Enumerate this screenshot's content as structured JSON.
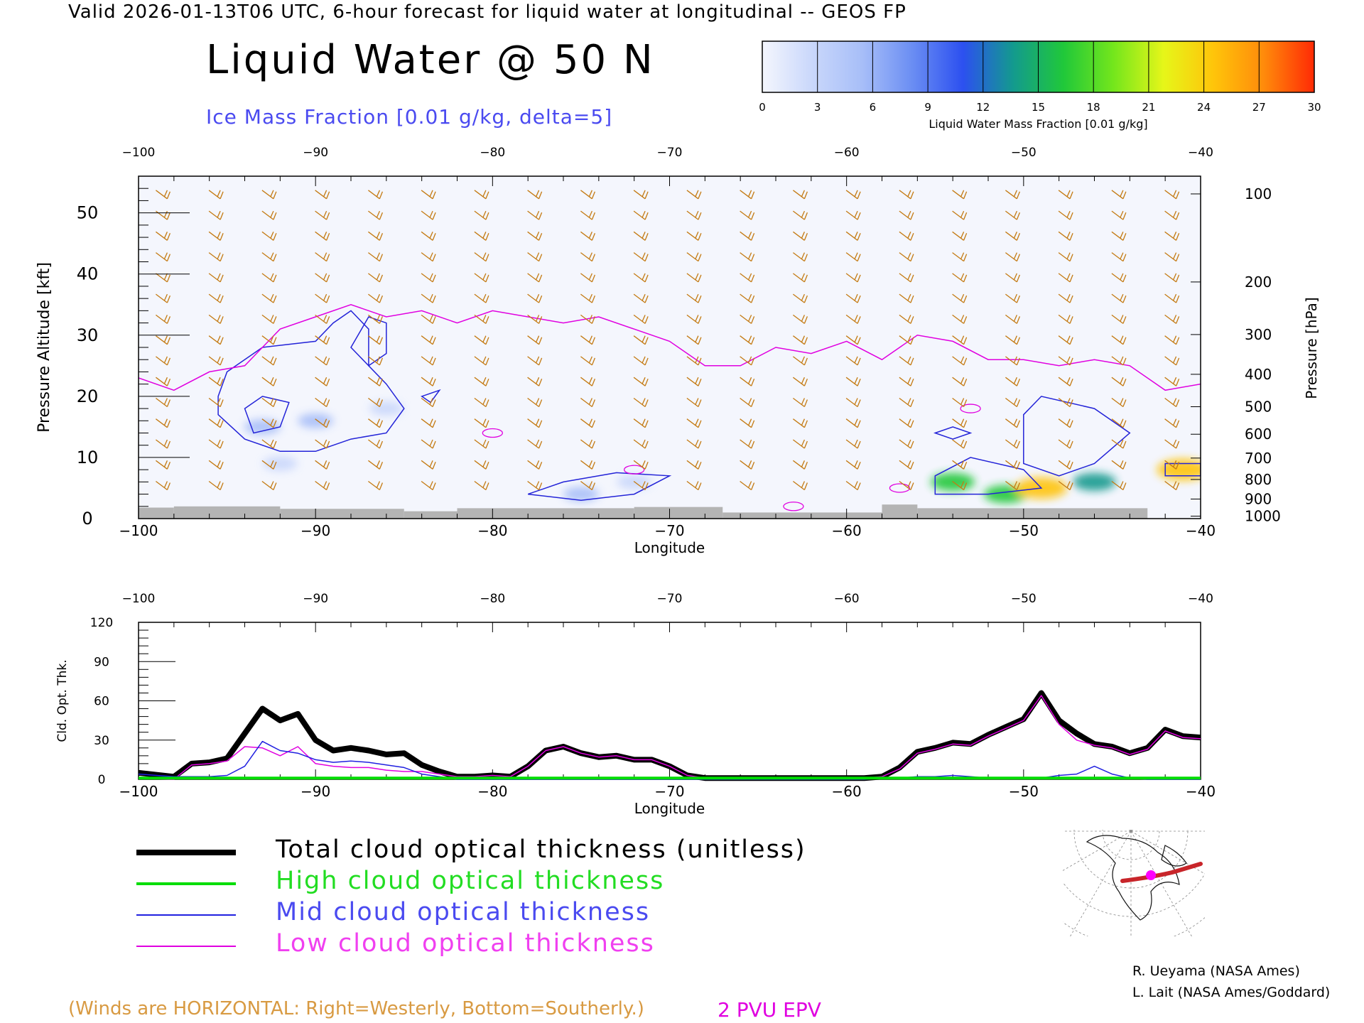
{
  "header": "Valid 2026-01-13T06 UTC, 6-hour forecast for liquid water at longitudinal -- GEOS FP",
  "title": "Liquid Water @ 50 N",
  "subtitle": "Ice Mass Fraction [0.01 g/kg, delta=5]",
  "colorbar": {
    "label": "Liquid Water Mass Fraction [0.01 g/kg]",
    "ticks": [
      "0",
      "3",
      "6",
      "9",
      "12",
      "15",
      "18",
      "21",
      "24",
      "27",
      "30"
    ],
    "colors": [
      "#f4f6fd",
      "#c9d7fb",
      "#a7bef8",
      "#6a8df3",
      "#2c50f0",
      "#139a8e",
      "#20c83a",
      "#74e61c",
      "#e6f619",
      "#ffc40a",
      "#ff8a0b",
      "#ff2a05"
    ]
  },
  "colors": {
    "wind_barb": "#c47a12",
    "ice_contour": "#2323d8",
    "epv_2pvu": "#e000e0",
    "terrain": "#b4b4b4",
    "total": "#000000",
    "high": "#00dd00",
    "mid": "#2020e0",
    "low": "#e000e0"
  },
  "chart_data": [
    {
      "type": "heatmap",
      "name": "liquid-water-cross-section",
      "xlabel": "Longitude",
      "ylabel": "Pressure Altitude [kft]",
      "y2label": "Pressure [hPa]",
      "xlim": [
        -100,
        -40
      ],
      "ylim": [
        0,
        56
      ],
      "x_ticks": [
        "-100",
        "-90",
        "-80",
        "-70",
        "-60",
        "-50",
        "-40"
      ],
      "y_ticks": [
        "0",
        "10",
        "20",
        "30",
        "40",
        "50"
      ],
      "pressure_ticks": [
        "100",
        "200",
        "300",
        "400",
        "500",
        "600",
        "700",
        "800",
        "900",
        "1000"
      ],
      "pressure_tick_kft": [
        53.1,
        38.7,
        30.1,
        23.6,
        18.3,
        13.8,
        9.9,
        6.4,
        3.2,
        0.4
      ],
      "liquid_water_patches": [
        {
          "lon": -93,
          "kft": 15,
          "value": 6
        },
        {
          "lon": -90,
          "kft": 16,
          "value": 5
        },
        {
          "lon": -92,
          "kft": 9,
          "value": 4
        },
        {
          "lon": -86,
          "kft": 18,
          "value": 3
        },
        {
          "lon": -75,
          "kft": 4,
          "value": 5
        },
        {
          "lon": -72,
          "kft": 6,
          "value": 4
        },
        {
          "lon": -54,
          "kft": 6,
          "value": 15
        },
        {
          "lon": -51,
          "kft": 4,
          "value": 15
        },
        {
          "lon": -49,
          "kft": 5,
          "value": 24
        },
        {
          "lon": -46,
          "kft": 6,
          "value": 14
        },
        {
          "lon": -41,
          "kft": 8,
          "value": 24
        }
      ],
      "epv_2pvu_kft": {
        "lon": [
          -100,
          -98,
          -96,
          -94,
          -92,
          -90,
          -88,
          -86,
          -84,
          -82,
          -80,
          -78,
          -76,
          -74,
          -72,
          -70,
          -68,
          -66,
          -64,
          -62,
          -60,
          -58,
          -56,
          -54,
          -52,
          -50,
          -48,
          -46,
          -44,
          -42,
          -40
        ],
        "kft": [
          23,
          21,
          24,
          25,
          31,
          33,
          35,
          33,
          34,
          32,
          34,
          33,
          32,
          33,
          31,
          29,
          25,
          25,
          28,
          27,
          29,
          26,
          30,
          29,
          26,
          26,
          25,
          26,
          25,
          21,
          22
        ]
      }
    },
    {
      "type": "line",
      "name": "cloud-optical-thickness",
      "xlabel": "Longitude",
      "ylabel": "Cld. Opt. Thk.",
      "xlim": [
        -100,
        -40
      ],
      "ylim": [
        0,
        120
      ],
      "x_ticks": [
        "-100",
        "-90",
        "-80",
        "-70",
        "-60",
        "-50",
        "-40"
      ],
      "y_ticks": [
        "0",
        "30",
        "60",
        "90",
        "120"
      ],
      "x": [
        -100,
        -98,
        -97,
        -96,
        -95,
        -94,
        -93,
        -92,
        -91,
        -90,
        -89,
        -88,
        -87,
        -86,
        -85,
        -84,
        -83,
        -82,
        -81,
        -80,
        -79,
        -78,
        -77,
        -76,
        -75,
        -74,
        -73,
        -72,
        -71,
        -70,
        -69,
        -68,
        -67,
        -66,
        -65,
        -64,
        -63,
        -62,
        -61,
        -60,
        -59,
        -58,
        -57,
        -56,
        -55,
        -54,
        -53,
        -52,
        -51,
        -50,
        -49,
        -48,
        -47,
        -46,
        -45,
        -44,
        -43,
        -42,
        -41,
        -40
      ],
      "series": [
        {
          "name": "Total cloud optical thickness (unitless)",
          "key": "total",
          "values": [
            5,
            2,
            12,
            13,
            16,
            35,
            54,
            45,
            50,
            30,
            22,
            24,
            22,
            19,
            20,
            11,
            6,
            2,
            2,
            3,
            2,
            10,
            22,
            25,
            20,
            17,
            18,
            15,
            15,
            10,
            3,
            1,
            1,
            1,
            1,
            1,
            1,
            1,
            1,
            1,
            1,
            2,
            9,
            21,
            24,
            28,
            27,
            34,
            40,
            46,
            66,
            45,
            35,
            27,
            25,
            20,
            24,
            38,
            33,
            32
          ]
        },
        {
          "name": "High cloud optical thickness",
          "key": "high",
          "values": [
            1,
            1,
            1,
            1,
            1,
            1,
            1,
            1,
            1,
            1,
            1,
            1,
            1,
            1,
            1,
            1,
            1,
            1,
            1,
            1,
            1,
            1,
            1,
            1,
            1,
            1,
            1,
            1,
            1,
            1,
            1,
            1,
            1,
            1,
            1,
            1,
            1,
            1,
            1,
            1,
            1,
            1,
            1,
            1,
            1,
            1,
            1,
            1,
            1,
            1,
            1,
            1,
            1,
            1,
            1,
            1,
            1,
            1,
            1,
            1
          ]
        },
        {
          "name": "Mid cloud optical thickness",
          "key": "mid",
          "values": [
            4,
            2,
            2,
            2,
            3,
            10,
            29,
            22,
            20,
            15,
            13,
            14,
            13,
            11,
            9,
            4,
            2,
            0,
            0,
            0,
            0,
            0,
            0,
            0,
            0,
            0,
            0,
            0,
            0,
            0,
            0,
            0,
            0,
            0,
            0,
            0,
            0,
            0,
            0,
            0,
            0,
            1,
            1,
            2,
            2,
            3,
            2,
            1,
            1,
            1,
            1,
            3,
            4,
            10,
            4,
            1,
            0,
            0,
            0,
            0
          ]
        },
        {
          "name": "Low cloud optical thickness",
          "key": "low",
          "values": [
            1,
            0,
            11,
            12,
            14,
            25,
            24,
            18,
            25,
            12,
            10,
            9,
            9,
            7,
            6,
            6,
            4,
            2,
            2,
            3,
            2,
            10,
            22,
            25,
            20,
            17,
            18,
            15,
            15,
            10,
            3,
            1,
            1,
            1,
            1,
            1,
            1,
            1,
            1,
            1,
            1,
            2,
            8,
            20,
            23,
            27,
            26,
            33,
            39,
            45,
            64,
            42,
            30,
            26,
            24,
            19,
            23,
            37,
            32,
            31
          ]
        }
      ]
    }
  ],
  "legend": [
    {
      "key": "total",
      "label": "Total cloud optical thickness (unitless)",
      "color": "#000000",
      "color_text": "#000000"
    },
    {
      "key": "high",
      "label": "High cloud optical thickness",
      "color": "#00dd00",
      "color_text": "#22dd22"
    },
    {
      "key": "mid",
      "label": "Mid cloud optical thickness",
      "color": "#2020e0",
      "color_text": "#4a4af0"
    },
    {
      "key": "low",
      "label": "Low cloud optical thickness",
      "color": "#e000e0",
      "color_text": "#f040f0"
    }
  ],
  "credits": [
    "R. Ueyama (NASA Ames)",
    "L. Lait (NASA Ames/Goddard)"
  ],
  "footer": {
    "winds": "(Winds are HORIZONTAL: Right=Westerly, Bottom=Southerly.)",
    "pvu": "2 PVU EPV"
  }
}
